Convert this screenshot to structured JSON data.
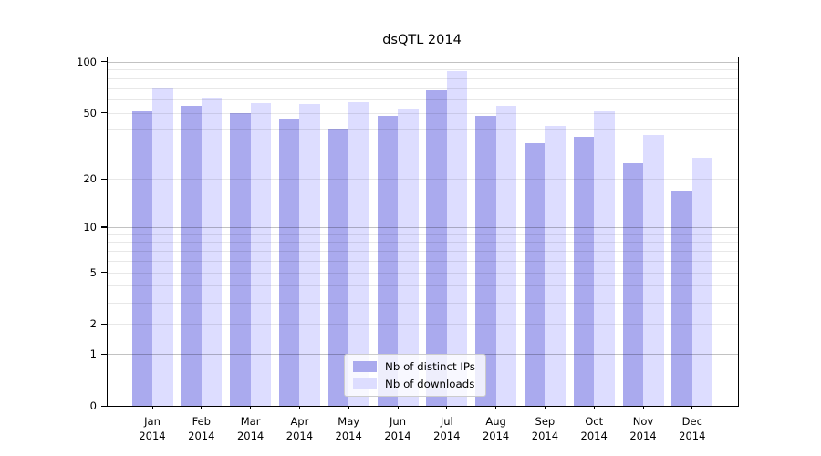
{
  "title": "dsQTL 2014",
  "chart_data": {
    "type": "bar",
    "title": "dsQTL 2014",
    "xlabel": "",
    "ylabel": "",
    "y_scale": "log(1+y)",
    "ylim": [
      0,
      106
    ],
    "grid": "on",
    "legend_position": "lower center (inside plot)",
    "categories": [
      {
        "month": "Jan",
        "year": "2014"
      },
      {
        "month": "Feb",
        "year": "2014"
      },
      {
        "month": "Mar",
        "year": "2014"
      },
      {
        "month": "Apr",
        "year": "2014"
      },
      {
        "month": "May",
        "year": "2014"
      },
      {
        "month": "Jun",
        "year": "2014"
      },
      {
        "month": "Jul",
        "year": "2014"
      },
      {
        "month": "Aug",
        "year": "2014"
      },
      {
        "month": "Sep",
        "year": "2014"
      },
      {
        "month": "Oct",
        "year": "2014"
      },
      {
        "month": "Nov",
        "year": "2014"
      },
      {
        "month": "Dec",
        "year": "2014"
      }
    ],
    "series": [
      {
        "name": "Nb of distinct IPs",
        "color": "#aaaaee",
        "values": [
          51,
          55,
          50,
          46,
          40,
          48,
          68,
          48,
          33,
          36,
          25,
          17
        ]
      },
      {
        "name": "Nb of downloads",
        "color": "#ddddff",
        "values": [
          70,
          61,
          57,
          56,
          58,
          52,
          88,
          55,
          42,
          51,
          37,
          27
        ]
      }
    ],
    "y_ticks": [
      {
        "v": 0,
        "label": "0"
      },
      {
        "v": 1,
        "label": "1"
      },
      {
        "v": 2,
        "label": "2"
      },
      {
        "v": 5,
        "label": "5"
      },
      {
        "v": 10,
        "label": "10"
      },
      {
        "v": 20,
        "label": "20"
      },
      {
        "v": 50,
        "label": "50"
      },
      {
        "v": 100,
        "label": "100"
      }
    ],
    "major_gridlines": [
      1,
      10,
      100
    ],
    "minor_gridlines": [
      2,
      3,
      4,
      5,
      6,
      7,
      8,
      9,
      20,
      30,
      40,
      50,
      60,
      70,
      80,
      90
    ]
  },
  "colors": {
    "background": "#ffffff",
    "spine": "#000000",
    "major_grid": "rgba(0,0,0,0.24)",
    "minor_grid": "rgba(0,0,0,0.09)"
  }
}
